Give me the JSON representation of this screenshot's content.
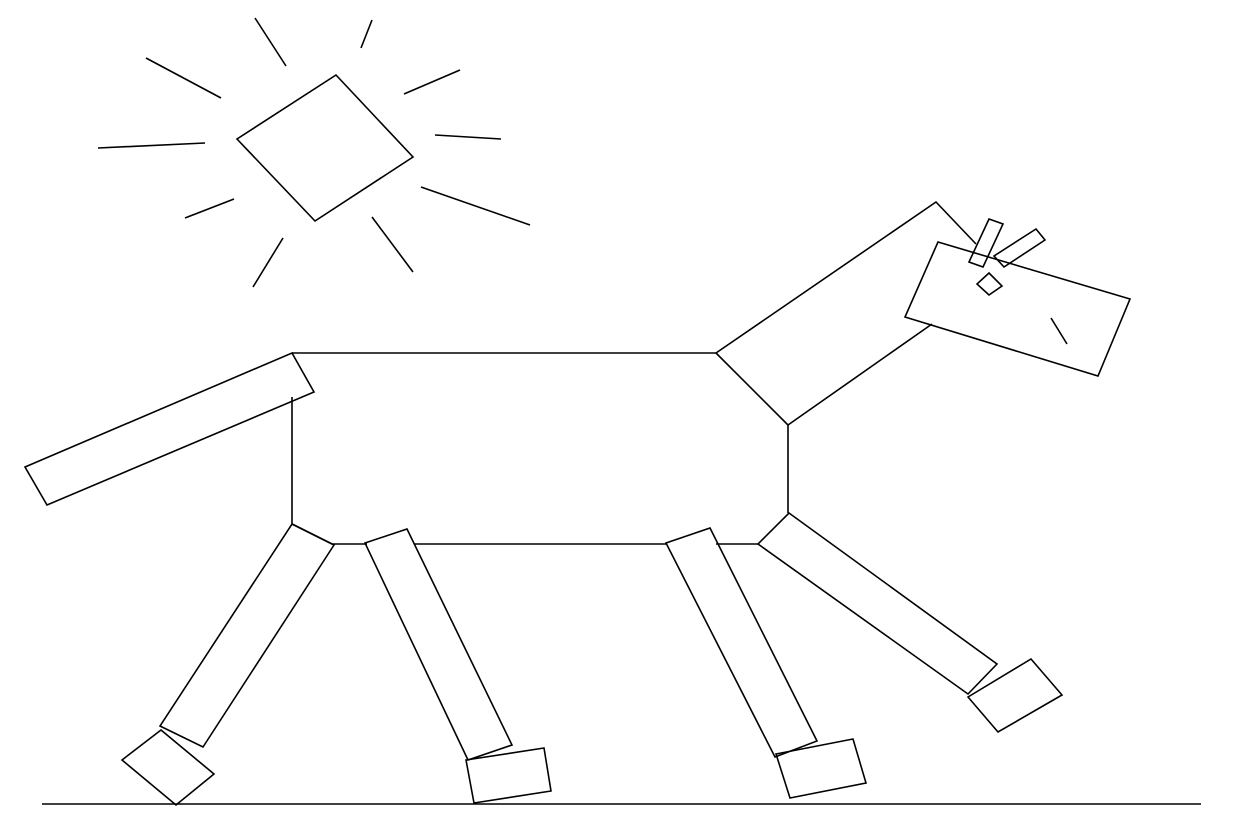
{
  "drawing": {
    "background_color": "#ffffff",
    "stroke_color": "#000000"
  }
}
